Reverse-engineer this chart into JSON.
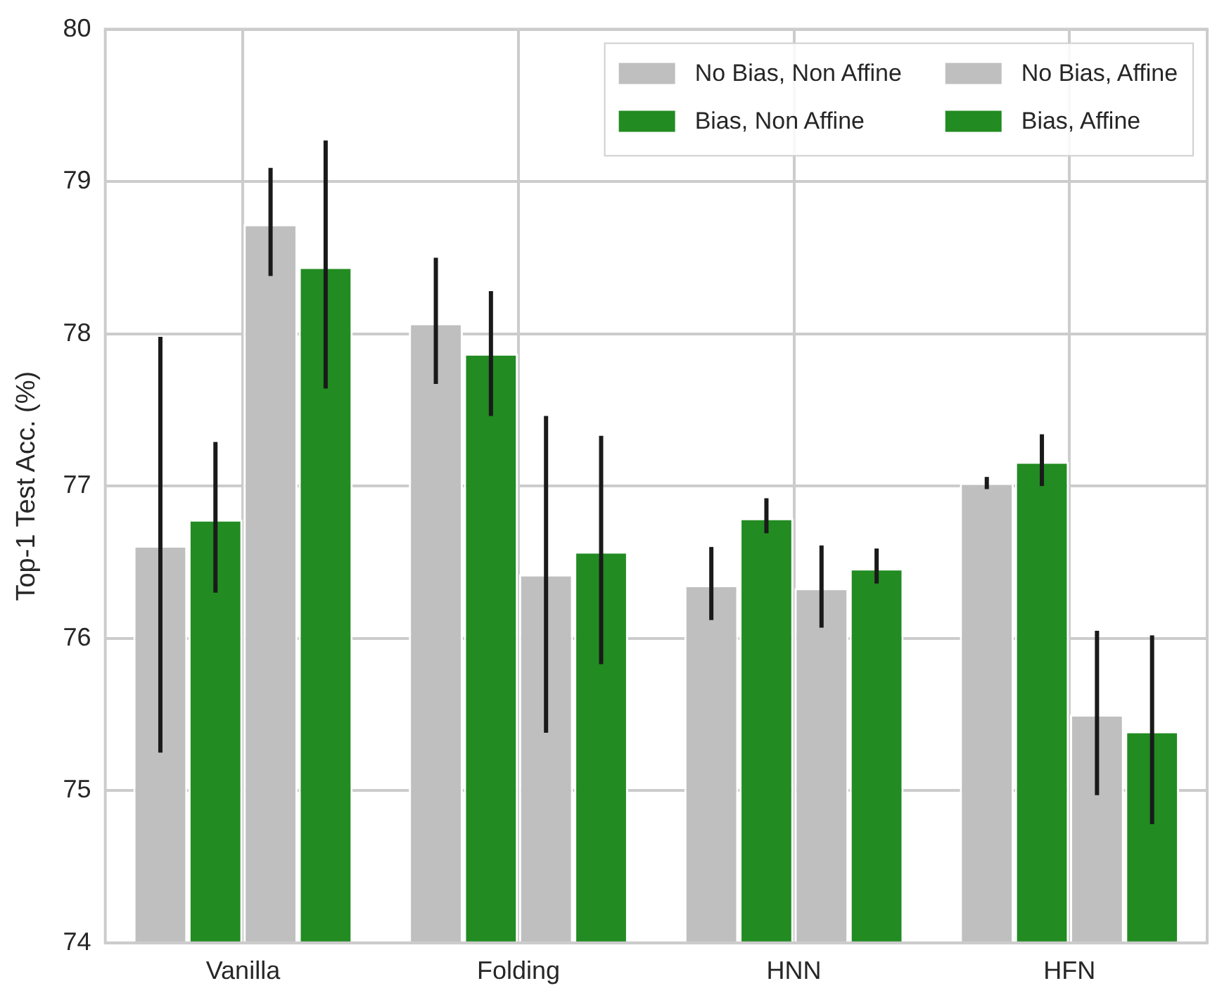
{
  "chart_data": {
    "type": "bar",
    "ylabel": "Top-1 Test Acc. (%)",
    "categories": [
      "Vanilla",
      "Folding",
      "HNN",
      "HFN"
    ],
    "series": [
      {
        "name": "No Bias, Non Affine",
        "color": "#bfbfbf",
        "values": [
          76.61,
          78.07,
          76.35,
          77.02
        ],
        "errors": [
          [
            75.25,
            77.98
          ],
          [
            77.67,
            78.5
          ],
          [
            76.12,
            76.6
          ],
          [
            76.98,
            77.06
          ]
        ]
      },
      {
        "name": "Bias, Non Affine",
        "color": "#228b22",
        "values": [
          76.78,
          77.87,
          76.79,
          77.16
        ],
        "errors": [
          [
            76.3,
            77.29
          ],
          [
            77.46,
            78.28
          ],
          [
            76.69,
            76.92
          ],
          [
            77.0,
            77.34
          ]
        ]
      },
      {
        "name": "No Bias, Affine",
        "color": "#bfbfbf",
        "values": [
          78.72,
          76.42,
          76.33,
          75.5
        ],
        "errors": [
          [
            78.38,
            79.09
          ],
          [
            75.38,
            77.46
          ],
          [
            76.07,
            76.61
          ],
          [
            74.97,
            76.05
          ]
        ]
      },
      {
        "name": "Bias, Affine",
        "color": "#228b22",
        "values": [
          78.44,
          76.57,
          76.46,
          75.39
        ],
        "errors": [
          [
            77.64,
            79.27
          ],
          [
            75.83,
            77.33
          ],
          [
            76.36,
            76.59
          ],
          [
            74.78,
            76.02
          ]
        ]
      }
    ],
    "ylim": [
      74,
      80
    ],
    "yticks": [
      74,
      75,
      76,
      77,
      78,
      79,
      80
    ],
    "grid": true,
    "legend": "top right"
  }
}
